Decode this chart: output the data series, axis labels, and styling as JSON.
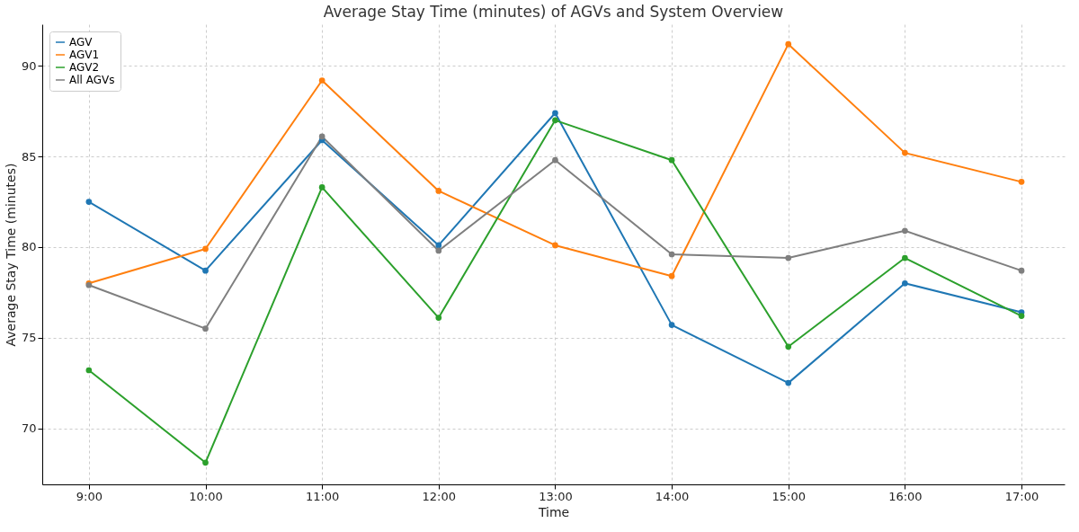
{
  "chart_data": {
    "type": "line",
    "title": "Average Stay Time (minutes) of AGVs and System Overview",
    "xlabel": "Time",
    "ylabel": "Average Stay Time (minutes)",
    "x": [
      9,
      10,
      11,
      12,
      13,
      14,
      15,
      16,
      17
    ],
    "series": [
      {
        "name": "AGV",
        "color": "#1f77b4",
        "values": [
          82.5,
          78.7,
          85.9,
          80.1,
          87.4,
          75.7,
          72.5,
          78.0,
          76.4
        ]
      },
      {
        "name": "AGV1",
        "color": "#ff7f0e",
        "values": [
          78.0,
          79.9,
          89.2,
          83.1,
          80.1,
          78.4,
          91.2,
          85.2,
          83.6
        ]
      },
      {
        "name": "AGV2",
        "color": "#2ca02c",
        "values": [
          73.2,
          68.1,
          83.3,
          76.1,
          87.0,
          84.8,
          74.5,
          79.4,
          76.2
        ]
      },
      {
        "name": "All AGVs",
        "color": "#7f7f7f",
        "values": [
          77.9,
          75.5,
          86.1,
          79.8,
          84.8,
          79.6,
          79.4,
          80.9,
          78.7
        ]
      }
    ],
    "xlim": [
      8.6,
      17.37
    ],
    "ylim": [
      66.9,
      92.3
    ],
    "xticks": [
      {
        "value": 9,
        "label": "9:00"
      },
      {
        "value": 10,
        "label": "10:00"
      },
      {
        "value": 11,
        "label": "11:00"
      },
      {
        "value": 12,
        "label": "12:00"
      },
      {
        "value": 13,
        "label": "13:00"
      },
      {
        "value": 14,
        "label": "14:00"
      },
      {
        "value": 15,
        "label": "15:00"
      },
      {
        "value": 16,
        "label": "16:00"
      },
      {
        "value": 17,
        "label": "17:00"
      }
    ],
    "yticks": [
      70,
      75,
      80,
      85,
      90
    ],
    "grid": true,
    "legend": "top left",
    "marker": "circle"
  }
}
